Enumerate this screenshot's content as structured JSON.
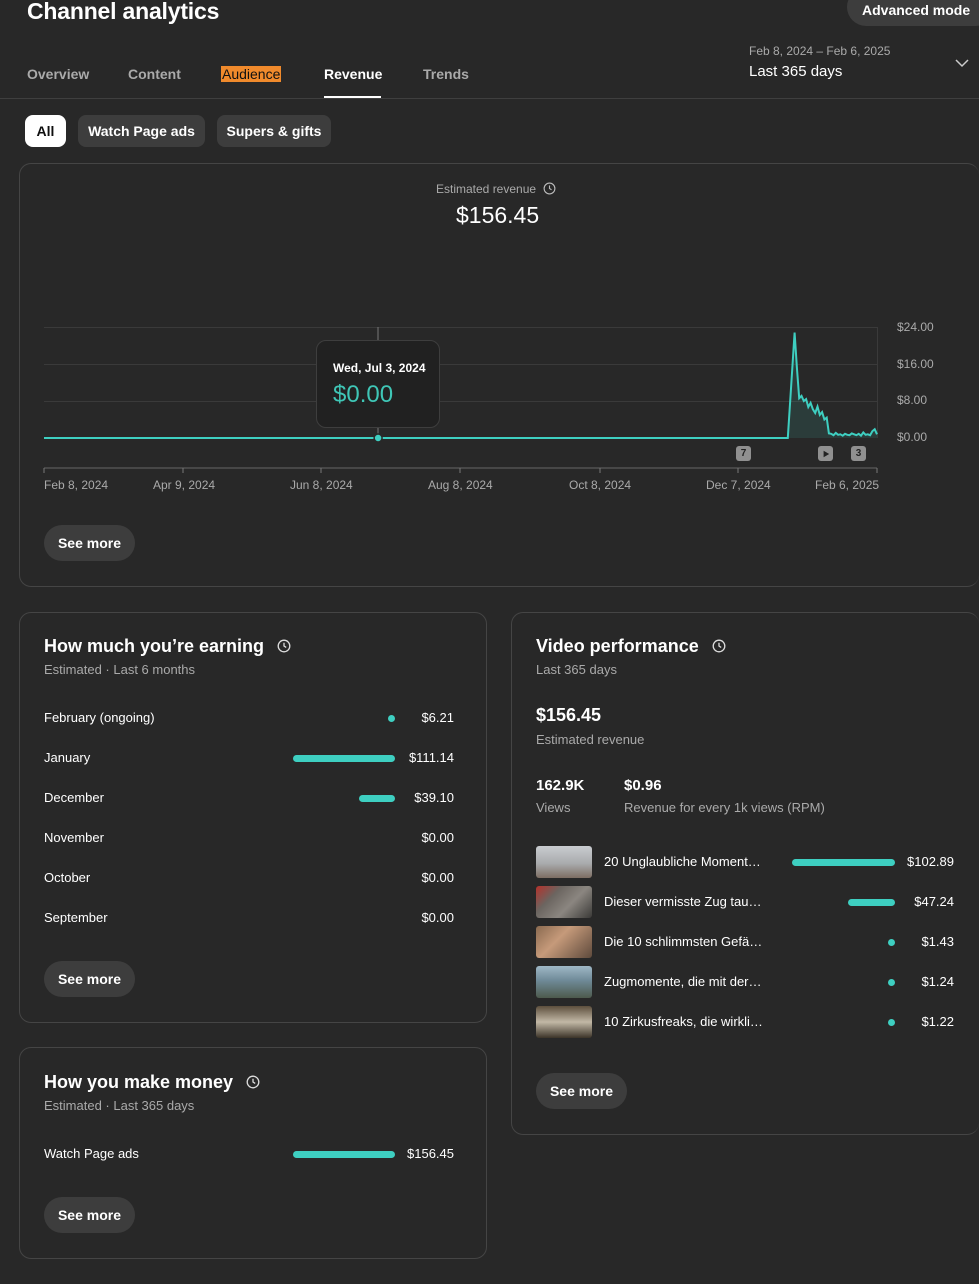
{
  "header": {
    "title": "Channel analytics",
    "advanced_mode": "Advanced mode",
    "tabs": [
      "Overview",
      "Content",
      "Audience",
      "Revenue",
      "Trends"
    ],
    "active_tab": "Revenue",
    "date_range": "Feb 8, 2024 – Feb 6, 2025",
    "date_label": "Last 365 days"
  },
  "filters": [
    "All",
    "Watch Page ads",
    "Supers & gifts"
  ],
  "main_chart": {
    "metric_label": "Estimated revenue",
    "total": "$156.45",
    "tooltip_date": "Wed, Jul 3, 2024",
    "tooltip_value": "$0.00",
    "markers": [
      "7",
      "play",
      "3"
    ],
    "see_more": "See more"
  },
  "chart_data": {
    "type": "line",
    "title": "Estimated revenue",
    "x_ticks": [
      "Feb 8, 2024",
      "Apr 9, 2024",
      "Jun 8, 2024",
      "Aug 8, 2024",
      "Oct 8, 2024",
      "Dec 7, 2024",
      "Feb 6, 2025"
    ],
    "y_ticks": [
      "$24.00",
      "$16.00",
      "$8.00",
      "$0.00"
    ],
    "ylim": [
      0,
      24
    ],
    "xlim": [
      "2024-02-08",
      "2025-02-06"
    ],
    "grid": true,
    "series": [
      {
        "x": [
          "2024-02-08",
          "2024-07-03",
          "2024-12-29",
          "2025-01-01",
          "2025-01-02",
          "2025-01-03",
          "2025-01-04",
          "2025-01-05",
          "2025-01-06",
          "2025-01-07",
          "2025-01-08",
          "2025-01-09",
          "2025-01-10",
          "2025-01-11",
          "2025-01-12",
          "2025-01-13",
          "2025-01-14",
          "2025-01-15",
          "2025-01-16",
          "2025-01-17",
          "2025-01-18",
          "2025-01-19",
          "2025-01-20",
          "2025-01-21",
          "2025-01-22",
          "2025-01-23",
          "2025-01-24",
          "2025-01-25",
          "2025-01-26",
          "2025-01-27",
          "2025-01-28",
          "2025-01-29",
          "2025-01-30",
          "2025-01-31",
          "2025-02-01",
          "2025-02-02",
          "2025-02-03",
          "2025-02-04",
          "2025-02-05",
          "2025-02-06"
        ],
        "y": [
          0,
          0,
          0,
          22.8,
          15.2,
          8.6,
          9.1,
          8.0,
          8.4,
          6.7,
          7.6,
          6.2,
          5.4,
          6.8,
          5.0,
          5.6,
          4.0,
          4.4,
          1.0,
          0.9,
          0.6,
          1.1,
          0.7,
          0.8,
          0.5,
          0.9,
          0.7,
          0.6,
          1.0,
          0.8,
          0.6,
          0.9,
          0.5,
          1.2,
          0.7,
          0.8,
          0.6,
          1.5,
          1.9,
          0.8
        ]
      }
    ]
  },
  "earning": {
    "title": "How much you’re earning",
    "subtitle": "Estimated · Last 6 months",
    "rows": [
      {
        "label": "February (ongoing)",
        "value": "$6.21",
        "amount": 6.21
      },
      {
        "label": "January",
        "value": "$111.14",
        "amount": 111.14
      },
      {
        "label": "December",
        "value": "$39.10",
        "amount": 39.1
      },
      {
        "label": "November",
        "value": "$0.00",
        "amount": 0
      },
      {
        "label": "October",
        "value": "$0.00",
        "amount": 0
      },
      {
        "label": "September",
        "value": "$0.00",
        "amount": 0
      }
    ],
    "see_more": "See more"
  },
  "money": {
    "title": "How you make money",
    "subtitle": "Estimated · Last 365 days",
    "rows": [
      {
        "label": "Watch Page ads",
        "value": "$156.45",
        "amount": 156.45
      }
    ],
    "see_more": "See more"
  },
  "video_perf": {
    "title": "Video performance",
    "subtitle": "Last 365 days",
    "revenue": "$156.45",
    "revenue_label": "Estimated revenue",
    "views": "162.9K",
    "views_label": "Views",
    "rpm": "$0.96",
    "rpm_label": "Revenue for every 1k views (RPM)",
    "videos": [
      {
        "title": "20 Unglaubliche Moment…",
        "value": "$102.89",
        "amount": 102.89
      },
      {
        "title": "Dieser vermisste Zug tau…",
        "value": "$47.24",
        "amount": 47.24
      },
      {
        "title": "Die 10 schlimmsten Gefä…",
        "value": "$1.43",
        "amount": 1.43
      },
      {
        "title": "Zugmomente, die mit der…",
        "value": "$1.24",
        "amount": 1.24
      },
      {
        "title": "10 Zirkusfreaks, die wirkli…",
        "value": "$1.22",
        "amount": 1.22
      }
    ],
    "see_more": "See more"
  },
  "colors": {
    "accent": "#3ecfc1",
    "background": "#282828",
    "highlight": "#f08a2c"
  }
}
